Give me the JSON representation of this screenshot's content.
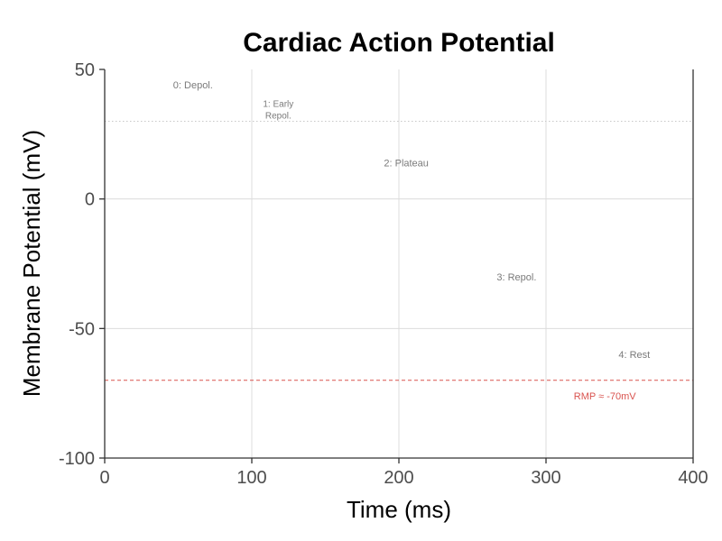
{
  "chart_data": {
    "type": "line",
    "title": "Cardiac Action Potential",
    "xlabel": "Time (ms)",
    "ylabel": "Membrane Potential (mV)",
    "xlim": [
      0,
      400
    ],
    "ylim": [
      -100,
      50
    ],
    "x_ticks": [
      0,
      100,
      200,
      300,
      400
    ],
    "y_ticks": [
      -100,
      -50,
      0,
      50
    ],
    "grid": true,
    "series": [],
    "annotations": [
      {
        "text": "0: Depol.",
        "x": 60,
        "y": 44
      },
      {
        "text": "1: Early",
        "x": 118,
        "y": 37
      },
      {
        "text": "Repol.",
        "x": 118,
        "y": 32.5
      },
      {
        "text": "2: Plateau",
        "x": 205,
        "y": 14
      },
      {
        "text": "3: Repol.",
        "x": 280,
        "y": -30
      },
      {
        "text": "4: Rest",
        "x": 360,
        "y": -60
      }
    ],
    "reference_lines": [
      {
        "orientation": "horizontal",
        "y": 30,
        "style": "dotted",
        "color": "#c8c8c8"
      },
      {
        "orientation": "horizontal",
        "y": -70,
        "style": "dashed",
        "color": "#d9534f",
        "label": "RMP ≈ -70mV",
        "label_x": 340,
        "label_y": -76
      }
    ]
  }
}
